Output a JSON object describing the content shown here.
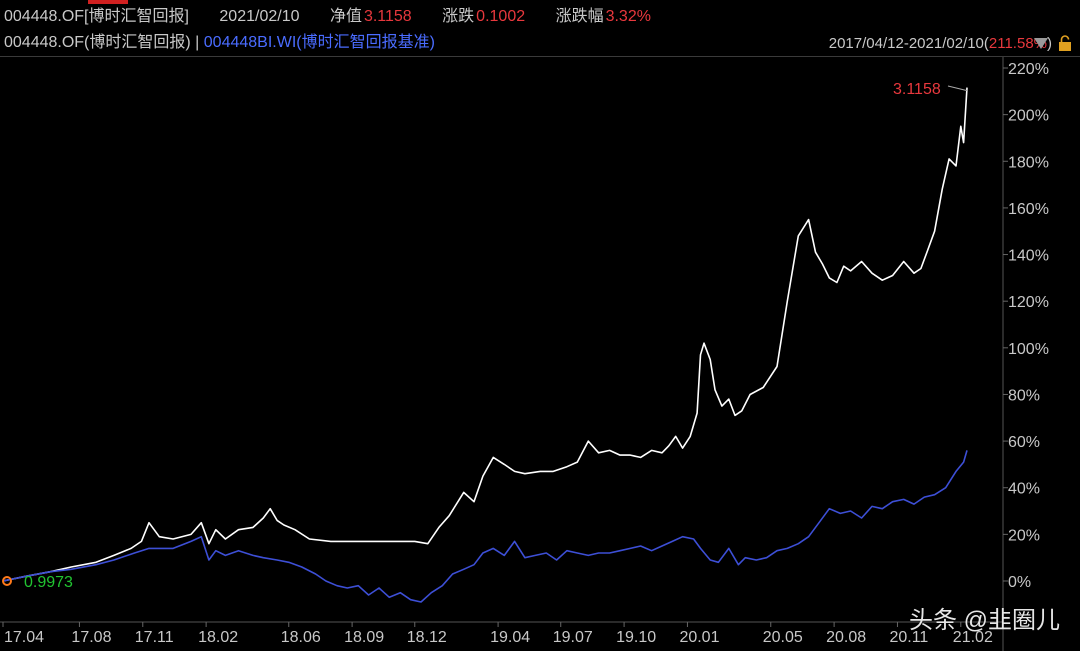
{
  "header": {
    "code": "004448.OF[博时汇智回报]",
    "date": "2021/02/10",
    "nav_label": "净值",
    "nav_value": "3.1158",
    "chg_label": "涨跌",
    "chg_value": "0.1002",
    "pct_label": "涨跌幅",
    "pct_value": "3.32%"
  },
  "legend": {
    "fund": "004448.OF(博时汇智回报)",
    "sep": " | ",
    "benchmark": "004448BI.WI(博时汇智回报基准)",
    "range_text": "2017/04/12-2021/02/10(",
    "range_value": "211.58%",
    "range_close": ")"
  },
  "watermark": "头条 @韭圈儿",
  "colors": {
    "fund": "#ffffff",
    "benchmark": "#3d4fd6",
    "up": "#e8383d",
    "down": "#21c431",
    "grid": "#444444"
  },
  "chart_data": {
    "type": "line",
    "x_ticks": [
      "17.04",
      "17.08",
      "17.11",
      "18.02",
      "18.06",
      "18.09",
      "18.12",
      "19.04",
      "19.07",
      "19.10",
      "20.01",
      "20.05",
      "20.08",
      "20.11",
      "21.02"
    ],
    "y_ticks": [
      "220%",
      "200%",
      "180%",
      "160%",
      "140%",
      "120%",
      "100%",
      "80%",
      "60%",
      "40%",
      "20%",
      "0%"
    ],
    "ylim": [
      -5,
      222
    ],
    "start_label": "0.9973",
    "end_label": "3.1158",
    "series": [
      {
        "name": "004448.OF(博时汇智回报)",
        "x": [
          "2017-04-12",
          "2017-05-15",
          "2017-06-20",
          "2017-07-20",
          "2017-08-25",
          "2017-09-20",
          "2017-10-15",
          "2017-10-30",
          "2017-11-10",
          "2017-11-25",
          "2017-12-15",
          "2018-01-10",
          "2018-01-25",
          "2018-02-05",
          "2018-02-15",
          "2018-03-01",
          "2018-03-20",
          "2018-04-10",
          "2018-04-25",
          "2018-05-05",
          "2018-05-15",
          "2018-05-25",
          "2018-06-10",
          "2018-07-01",
          "2018-08-01",
          "2018-09-01",
          "2018-10-01",
          "2018-11-01",
          "2018-12-01",
          "2018-12-20",
          "2019-01-05",
          "2019-01-20",
          "2019-02-10",
          "2019-02-25",
          "2019-03-10",
          "2019-03-25",
          "2019-04-10",
          "2019-04-25",
          "2019-05-10",
          "2019-06-01",
          "2019-06-20",
          "2019-07-10",
          "2019-07-25",
          "2019-08-10",
          "2019-08-25",
          "2019-09-10",
          "2019-09-25",
          "2019-10-10",
          "2019-10-25",
          "2019-11-10",
          "2019-11-25",
          "2019-12-05",
          "2019-12-15",
          "2019-12-25",
          "2020-01-05",
          "2020-01-15",
          "2020-01-20",
          "2020-01-25",
          "2020-02-03",
          "2020-02-10",
          "2020-02-20",
          "2020-03-01",
          "2020-03-10",
          "2020-03-20",
          "2020-04-01",
          "2020-04-20",
          "2020-05-10",
          "2020-05-25",
          "2020-06-10",
          "2020-06-25",
          "2020-07-05",
          "2020-07-15",
          "2020-07-25",
          "2020-08-05",
          "2020-08-15",
          "2020-08-25",
          "2020-09-10",
          "2020-09-25",
          "2020-10-10",
          "2020-10-25",
          "2020-11-10",
          "2020-11-25",
          "2020-12-05",
          "2020-12-15",
          "2020-12-25",
          "2021-01-05",
          "2021-01-15",
          "2021-01-25",
          "2021-02-01",
          "2021-02-05",
          "2021-02-10"
        ],
        "values": [
          0,
          2,
          4,
          6,
          8,
          11,
          14,
          17,
          25,
          19,
          18,
          20,
          25,
          16,
          22,
          18,
          22,
          23,
          27,
          31,
          26,
          24,
          22,
          18,
          17,
          17,
          17,
          17,
          17,
          16,
          23,
          28,
          38,
          34,
          45,
          53,
          50,
          47,
          46,
          47,
          47,
          49,
          51,
          60,
          55,
          56,
          54,
          54,
          53,
          56,
          55,
          58,
          62,
          57,
          62,
          72,
          97,
          102,
          95,
          82,
          75,
          78,
          71,
          73,
          80,
          83,
          92,
          120,
          148,
          155,
          141,
          136,
          130,
          128,
          135,
          133,
          137,
          132,
          129,
          131,
          137,
          132,
          134,
          142,
          150,
          168,
          181,
          178,
          195,
          188,
          211.6
        ]
      },
      {
        "name": "004448BI.WI(博时汇智回报基准)",
        "x": [
          "2017-04-12",
          "2017-05-15",
          "2017-06-20",
          "2017-07-20",
          "2017-08-25",
          "2017-09-20",
          "2017-10-20",
          "2017-11-10",
          "2017-11-25",
          "2017-12-15",
          "2018-01-10",
          "2018-01-25",
          "2018-02-05",
          "2018-02-15",
          "2018-03-01",
          "2018-03-20",
          "2018-04-10",
          "2018-04-25",
          "2018-05-15",
          "2018-06-01",
          "2018-06-20",
          "2018-07-10",
          "2018-07-25",
          "2018-08-10",
          "2018-08-25",
          "2018-09-10",
          "2018-09-25",
          "2018-10-10",
          "2018-10-25",
          "2018-11-10",
          "2018-11-25",
          "2018-12-10",
          "2018-12-25",
          "2019-01-10",
          "2019-01-25",
          "2019-02-10",
          "2019-02-25",
          "2019-03-10",
          "2019-03-25",
          "2019-04-10",
          "2019-04-25",
          "2019-05-10",
          "2019-05-25",
          "2019-06-10",
          "2019-06-25",
          "2019-07-10",
          "2019-07-25",
          "2019-08-10",
          "2019-08-25",
          "2019-09-10",
          "2019-09-25",
          "2019-10-10",
          "2019-10-25",
          "2019-11-10",
          "2019-11-25",
          "2019-12-10",
          "2019-12-25",
          "2020-01-10",
          "2020-01-20",
          "2020-02-03",
          "2020-02-15",
          "2020-03-01",
          "2020-03-15",
          "2020-03-25",
          "2020-04-10",
          "2020-04-25",
          "2020-05-10",
          "2020-05-25",
          "2020-06-10",
          "2020-06-25",
          "2020-07-10",
          "2020-07-25",
          "2020-08-10",
          "2020-08-25",
          "2020-09-10",
          "2020-09-25",
          "2020-10-10",
          "2020-10-25",
          "2020-11-10",
          "2020-11-25",
          "2020-12-10",
          "2020-12-25",
          "2021-01-10",
          "2021-01-25",
          "2021-02-05",
          "2021-02-10"
        ],
        "values": [
          0,
          2,
          4,
          5,
          7,
          9,
          12,
          14,
          14,
          14,
          17,
          19,
          9,
          13,
          11,
          13,
          11,
          10,
          9,
          8,
          6,
          3,
          0,
          -2,
          -3,
          -2,
          -6,
          -3,
          -7,
          -5,
          -8,
          -9,
          -5,
          -2,
          3,
          5,
          7,
          12,
          14,
          11,
          17,
          10,
          11,
          12,
          9,
          13,
          12,
          11,
          12,
          12,
          13,
          14,
          15,
          13,
          15,
          17,
          19,
          18,
          14,
          9,
          8,
          14,
          7,
          10,
          9,
          10,
          13,
          14,
          16,
          19,
          25,
          31,
          29,
          30,
          27,
          32,
          31,
          34,
          35,
          33,
          36,
          37,
          40,
          47,
          51,
          56
        ]
      }
    ]
  }
}
